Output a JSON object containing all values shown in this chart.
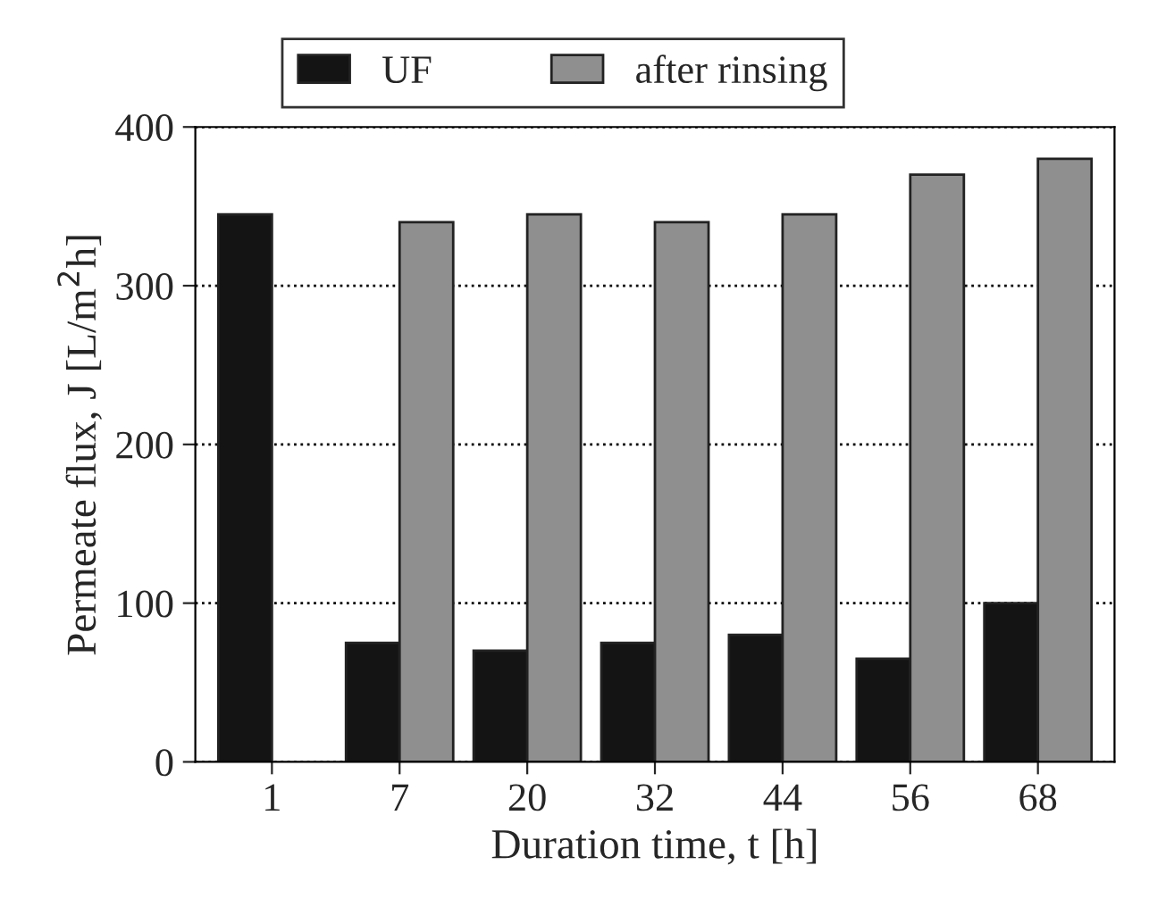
{
  "chart_data": {
    "type": "bar",
    "xlabel": "Duration time, t [h]",
    "ylabel": "Permeate flux, J [L/m$^{2}$h]",
    "categories": [
      "1",
      "7",
      "20",
      "32",
      "44",
      "56",
      "68"
    ],
    "series": [
      {
        "name": "UF",
        "color": "#141414",
        "values": [
          345,
          75,
          70,
          75,
          80,
          65,
          100
        ]
      },
      {
        "name": "after rinsing",
        "color": "#8f8f8f",
        "values": [
          null,
          340,
          345,
          340,
          345,
          370,
          380
        ]
      }
    ],
    "ylim": [
      0,
      400
    ],
    "yticks": [
      0,
      100,
      200,
      300,
      400
    ],
    "grid": "y",
    "legend": "top"
  }
}
